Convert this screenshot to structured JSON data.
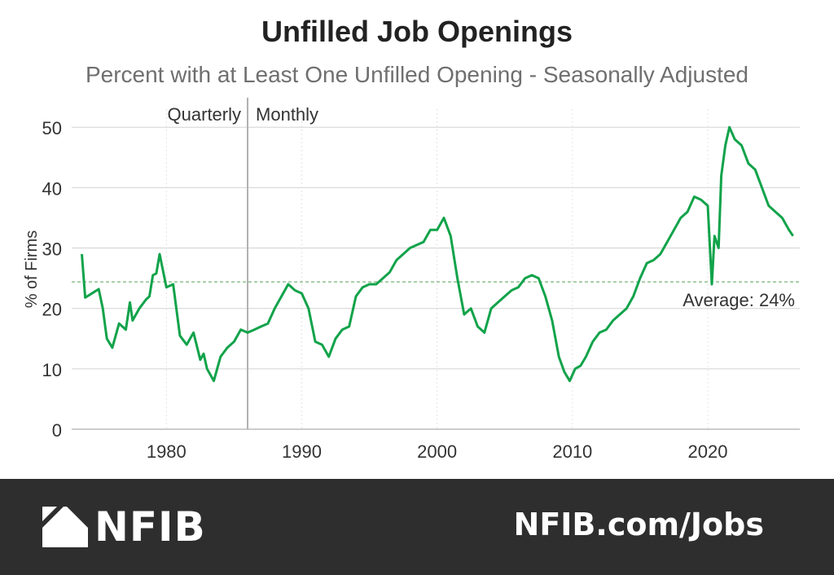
{
  "chart_data": {
    "type": "line",
    "title": "Unfilled Job Openings",
    "subtitle": "Percent with at Least One Unfilled Opening - Seasonally Adjusted",
    "xlabel": "",
    "ylabel": "% of Firms",
    "xlim": [
      1973,
      2026.8
    ],
    "ylim": [
      0,
      53
    ],
    "yticks": [
      0,
      10,
      20,
      30,
      40,
      50
    ],
    "xticks": [
      1980,
      1990,
      2000,
      2010,
      2020
    ],
    "grid": {
      "horizontal": true,
      "vertical": "dotted"
    },
    "series": [
      {
        "color": "#11a34a",
        "x": [
          1973.75,
          1974.0,
          1974.5,
          1975.0,
          1975.3,
          1975.6,
          1976.0,
          1976.5,
          1977.0,
          1977.3,
          1977.5,
          1978.0,
          1978.5,
          1978.75,
          1979.0,
          1979.25,
          1979.5,
          1980.0,
          1980.5,
          1981.0,
          1981.5,
          1982.0,
          1982.5,
          1982.75,
          1983.0,
          1983.5,
          1984.0,
          1984.5,
          1985.0,
          1985.5,
          1986.0,
          1986.5,
          1987.0,
          1987.5,
          1988.0,
          1988.5,
          1989.0,
          1989.5,
          1990.0,
          1990.5,
          1991.0,
          1991.5,
          1992.0,
          1992.5,
          1993.0,
          1993.5,
          1994.0,
          1994.5,
          1995.0,
          1995.5,
          1996.0,
          1996.5,
          1997.0,
          1997.5,
          1998.0,
          1998.5,
          1999.0,
          1999.5,
          2000.0,
          2000.5,
          2001.0,
          2001.5,
          2002.0,
          2002.5,
          2003.0,
          2003.5,
          2004.0,
          2004.5,
          2005.0,
          2005.5,
          2006.0,
          2006.5,
          2007.0,
          2007.5,
          2008.0,
          2008.5,
          2009.0,
          2009.4,
          2009.8,
          2010.2,
          2010.6,
          2011.0,
          2011.5,
          2012.0,
          2012.5,
          2013.0,
          2013.5,
          2014.0,
          2014.5,
          2015.0,
          2015.5,
          2016.0,
          2016.5,
          2017.0,
          2017.5,
          2018.0,
          2018.5,
          2019.0,
          2019.5,
          2020.0,
          2020.3,
          2020.5,
          2020.8,
          2021.0,
          2021.3,
          2021.6,
          2022.0,
          2022.5,
          2023.0,
          2023.5,
          2024.0,
          2024.5,
          2025.0,
          2025.5,
          2026.0,
          2026.3
        ],
        "y": [
          29,
          21.8,
          22.5,
          23.2,
          20,
          15,
          13.5,
          17.5,
          16.5,
          21,
          18,
          20,
          21.5,
          22,
          25.5,
          25.8,
          29,
          23.5,
          24,
          15.5,
          14,
          16,
          11.5,
          12.5,
          10,
          8,
          12,
          13.5,
          14.5,
          16.5,
          16,
          16.5,
          17,
          17.5,
          20,
          22,
          24,
          23,
          22.5,
          20,
          14.5,
          14,
          12,
          15,
          16.5,
          17,
          22,
          23.5,
          24,
          24,
          25,
          26,
          28,
          29,
          30,
          30.5,
          31,
          33,
          33,
          35,
          32,
          25,
          19,
          20,
          17,
          16,
          20,
          21,
          22,
          23,
          23.5,
          25,
          25.5,
          25,
          22,
          18,
          12,
          9.5,
          8,
          10,
          10.5,
          12,
          14.5,
          16,
          16.5,
          18,
          19,
          20,
          22,
          25,
          27.5,
          28,
          29,
          31,
          33,
          35,
          36,
          38.5,
          38,
          37,
          24,
          32,
          30,
          42,
          47,
          50,
          48,
          47,
          44,
          43,
          40,
          37,
          36,
          35,
          33,
          32
        ]
      }
    ],
    "annotations": {
      "average_value": 24.4,
      "average_label": "Average: 24%",
      "divider_x": 1986.0,
      "divider_left_label": "Quarterly",
      "divider_right_label": "Monthly"
    }
  },
  "footer": {
    "brand": "NFIB",
    "url": "NFIB.com/Jobs"
  },
  "colors": {
    "line": "#11a34a",
    "average_line": "#8fbf8f",
    "grid": "#d3d3d3",
    "divider": "#b0b0b0",
    "footer_bg": "#2e2e2e"
  }
}
